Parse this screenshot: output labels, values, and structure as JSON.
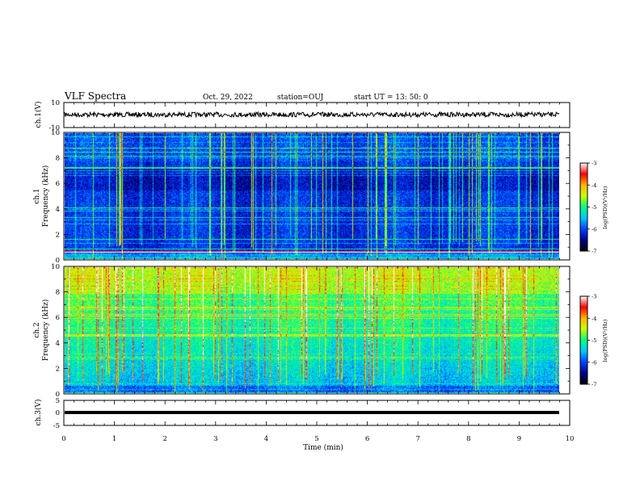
{
  "header": {
    "title": "VLF Spectra",
    "date": "Oct. 29, 2022",
    "station": "station=OUJ",
    "start": "start  UT =   13: 50: 0"
  },
  "chart_data": [
    {
      "type": "line",
      "name": "ch1-waveform",
      "ylabel": "ch.1(V)",
      "ylim": [
        -10,
        10
      ],
      "yticks": [
        "10",
        "-10"
      ],
      "xlim": [
        0,
        10
      ],
      "level_volts": 0,
      "trace_color": "#000000"
    },
    {
      "type": "heatmap",
      "name": "ch1-spectrogram",
      "ylabel": "ch.1 Frequency (kHz)",
      "ylim": [
        0,
        10
      ],
      "yticks": [
        "0",
        "2",
        "4",
        "6",
        "8",
        "10"
      ],
      "xlim": [
        0,
        9.85
      ],
      "colorbar": {
        "label": "log(PSD)(V²/Hz)",
        "ticks": [
          "-3",
          "-4",
          "-5",
          "-6",
          "-7"
        ],
        "range": [
          -7,
          -3
        ]
      },
      "background_level": -6.2
    },
    {
      "type": "heatmap",
      "name": "ch2-spectrogram",
      "ylabel": "ch.2 Frequency (kHz)",
      "ylim": [
        0,
        10
      ],
      "yticks": [
        "0",
        "2",
        "4",
        "6",
        "8",
        "10"
      ],
      "xlim": [
        0,
        9.85
      ],
      "colorbar": {
        "label": "log(PSD)(V²/Hz)",
        "ticks": [
          "-3",
          "-4",
          "-5",
          "-6",
          "-7"
        ],
        "range": [
          -7,
          -3
        ]
      },
      "background_level": -5.0
    },
    {
      "type": "line",
      "name": "ch3-waveform",
      "ylabel": "ch.3(V)",
      "ylim": [
        -5,
        5
      ],
      "yticks": [
        "5",
        "0",
        "-5"
      ],
      "xlim": [
        0,
        10
      ],
      "level_volts": -0.6,
      "trace_color": "#000000"
    }
  ],
  "x_axis": {
    "label": "Time (min)",
    "ticks": [
      "0",
      "1",
      "2",
      "3",
      "4",
      "5",
      "6",
      "7",
      "8",
      "9",
      "10"
    ],
    "range": [
      0,
      10
    ]
  },
  "colormap": [
    "#000000",
    "#00008c",
    "#0040ff",
    "#00c8ff",
    "#00ff80",
    "#c8ff00",
    "#ffb400",
    "#ff0000",
    "#ffffff"
  ]
}
